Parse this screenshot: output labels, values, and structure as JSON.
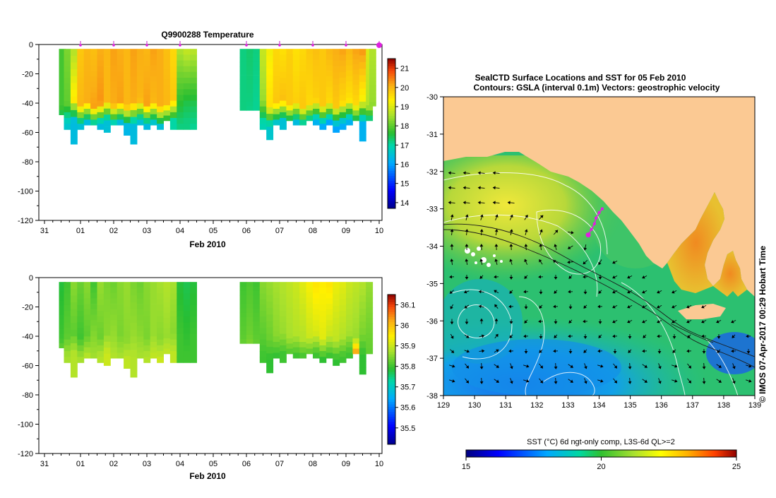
{
  "chart_data": [
    {
      "type": "heatmap",
      "title": "Q9900288  Temperature",
      "xlabel": "Feb 2010",
      "ylabel": "",
      "x_tick_labels": [
        "31",
        "01",
        "02",
        "03",
        "04",
        "05",
        "06",
        "07",
        "08",
        "09",
        "10"
      ],
      "y_tick_labels": [
        "0",
        "-20",
        "-40",
        "-60",
        "-80",
        "-100",
        "-120"
      ],
      "yticks": [
        0,
        -20,
        -40,
        -60,
        -80,
        -100,
        -120
      ],
      "ylim": [
        -120,
        0
      ],
      "xlim": [
        0,
        10
      ],
      "colorbar_ticks": [
        21,
        20,
        19,
        18,
        17,
        16,
        15,
        14
      ],
      "colorbar_range": [
        13.7,
        21.5
      ],
      "profile_markers": [
        1,
        2,
        3,
        4,
        6,
        7,
        8,
        9,
        10
      ],
      "profiles": [
        {
          "day": 0.45,
          "bottom": -48,
          "surface": 17.8,
          "mixed": 17.8,
          "deep": 16.8
        },
        {
          "day": 0.6,
          "bottom": -58,
          "surface": 18.2,
          "mixed": 18.0,
          "deep": 16.6
        },
        {
          "day": 0.8,
          "bottom": -68,
          "surface": 18.6,
          "mixed": 19.4,
          "deep": 16.4
        },
        {
          "day": 1.0,
          "bottom": -58,
          "surface": 19.8,
          "mixed": 20.0,
          "deep": 16.5
        },
        {
          "day": 1.2,
          "bottom": -55,
          "surface": 20.0,
          "mixed": 20.1,
          "deep": 16.4
        },
        {
          "day": 1.4,
          "bottom": -55,
          "surface": 19.9,
          "mixed": 20.2,
          "deep": 16.3
        },
        {
          "day": 1.6,
          "bottom": -58,
          "surface": 20.1,
          "mixed": 20.3,
          "deep": 16.4
        },
        {
          "day": 1.8,
          "bottom": -60,
          "surface": 20.0,
          "mixed": 20.0,
          "deep": 16.5
        },
        {
          "day": 2.0,
          "bottom": -55,
          "surface": 20.2,
          "mixed": 20.1,
          "deep": 16.4
        },
        {
          "day": 2.2,
          "bottom": -55,
          "surface": 20.1,
          "mixed": 20.2,
          "deep": 16.4
        },
        {
          "day": 2.4,
          "bottom": -62,
          "surface": 20.0,
          "mixed": 20.0,
          "deep": 16.3
        },
        {
          "day": 2.6,
          "bottom": -68,
          "surface": 20.2,
          "mixed": 20.1,
          "deep": 16.4
        },
        {
          "day": 2.8,
          "bottom": -55,
          "surface": 20.1,
          "mixed": 20.0,
          "deep": 16.5
        },
        {
          "day": 3.0,
          "bottom": -58,
          "surface": 20.0,
          "mixed": 20.2,
          "deep": 16.4
        },
        {
          "day": 3.2,
          "bottom": -55,
          "surface": 20.2,
          "mixed": 20.0,
          "deep": 16.6
        },
        {
          "day": 3.4,
          "bottom": -58,
          "surface": 20.1,
          "mixed": 20.1,
          "deep": 16.5
        },
        {
          "day": 3.6,
          "bottom": -52,
          "surface": 19.9,
          "mixed": 20.0,
          "deep": 16.8
        },
        {
          "day": 3.8,
          "bottom": -58,
          "surface": 19.6,
          "mixed": 19.8,
          "deep": 17.0
        },
        {
          "day": 4.0,
          "bottom": -58,
          "surface": 18.6,
          "mixed": 17.6,
          "deep": 17.2
        },
        {
          "day": 4.2,
          "bottom": -58,
          "surface": 18.8,
          "mixed": 17.5,
          "deep": 17.2
        },
        {
          "day": 4.4,
          "bottom": -58,
          "surface": 18.7,
          "mixed": 17.4,
          "deep": 17.1
        },
        {
          "day": 5.9,
          "bottom": -45,
          "surface": 17.2,
          "mixed": 17.2,
          "deep": 17.2
        },
        {
          "day": 6.1,
          "bottom": -45,
          "surface": 17.3,
          "mixed": 17.2,
          "deep": 17.1
        },
        {
          "day": 6.3,
          "bottom": -45,
          "surface": 17.2,
          "mixed": 17.1,
          "deep": 17.1
        },
        {
          "day": 6.5,
          "bottom": -58,
          "surface": 18.8,
          "mixed": 18.4,
          "deep": 16.9
        },
        {
          "day": 6.7,
          "bottom": -65,
          "surface": 19.2,
          "mixed": 19.5,
          "deep": 16.6
        },
        {
          "day": 6.9,
          "bottom": -55,
          "surface": 19.6,
          "mixed": 19.8,
          "deep": 16.4
        },
        {
          "day": 7.1,
          "bottom": -58,
          "surface": 19.5,
          "mixed": 19.9,
          "deep": 16.5
        },
        {
          "day": 7.3,
          "bottom": -52,
          "surface": 19.7,
          "mixed": 19.8,
          "deep": 16.3
        },
        {
          "day": 7.5,
          "bottom": -55,
          "surface": 19.5,
          "mixed": 19.7,
          "deep": 16.4
        },
        {
          "day": 7.7,
          "bottom": -55,
          "surface": 19.6,
          "mixed": 19.8,
          "deep": 16.4
        },
        {
          "day": 7.9,
          "bottom": -52,
          "surface": 19.8,
          "mixed": 19.6,
          "deep": 16.3
        },
        {
          "day": 8.1,
          "bottom": -55,
          "surface": 19.9,
          "mixed": 19.7,
          "deep": 16.2
        },
        {
          "day": 8.3,
          "bottom": -58,
          "surface": 19.8,
          "mixed": 19.8,
          "deep": 16.1
        },
        {
          "day": 8.5,
          "bottom": -55,
          "surface": 20.0,
          "mixed": 19.6,
          "deep": 16.0
        },
        {
          "day": 8.7,
          "bottom": -60,
          "surface": 20.1,
          "mixed": 19.8,
          "deep": 16.0
        },
        {
          "day": 8.9,
          "bottom": -58,
          "surface": 20.2,
          "mixed": 19.6,
          "deep": 16.1
        },
        {
          "day": 9.1,
          "bottom": -55,
          "surface": 20.0,
          "mixed": 19.5,
          "deep": 16.2
        },
        {
          "day": 9.3,
          "bottom": -52,
          "surface": 20.2,
          "mixed": 19.6,
          "deep": 16.4
        },
        {
          "day": 9.5,
          "bottom": -66,
          "surface": 20.3,
          "mixed": 19.2,
          "deep": 16.2
        },
        {
          "day": 9.7,
          "bottom": -52,
          "surface": 19.0,
          "mixed": 18.6,
          "deep": 16.3
        },
        {
          "day": 9.8,
          "bottom": -42,
          "surface": 18.6,
          "mixed": 18.4,
          "deep": 17.4
        }
      ]
    },
    {
      "type": "heatmap",
      "title": "",
      "xlabel": "Feb 2010",
      "ylabel": "",
      "x_tick_labels": [
        "31",
        "01",
        "02",
        "03",
        "04",
        "05",
        "06",
        "07",
        "08",
        "09",
        "10"
      ],
      "y_tick_labels": [
        "0",
        "-20",
        "-40",
        "-60",
        "-80",
        "-100",
        "-120"
      ],
      "yticks": [
        0,
        -20,
        -40,
        -60,
        -80,
        -100,
        -120
      ],
      "ylim": [
        -120,
        0
      ],
      "xlim": [
        0,
        10
      ],
      "colorbar_ticks": [
        36.1,
        36,
        35.9,
        35.8,
        35.7,
        35.6,
        35.5
      ],
      "colorbar_ticklabels": [
        "36.1",
        "36",
        "35.9",
        "35.8",
        "35.7",
        "35.6",
        "35.5"
      ],
      "colorbar_range": [
        35.42,
        36.15
      ],
      "profiles": [
        {
          "day": 0.45,
          "bottom": -48,
          "surface": 35.78,
          "mixed": 35.8,
          "deep": 35.86
        },
        {
          "day": 0.6,
          "bottom": -58,
          "surface": 35.8,
          "mixed": 35.82,
          "deep": 35.87
        },
        {
          "day": 0.8,
          "bottom": -68,
          "surface": 35.85,
          "mixed": 35.82,
          "deep": 35.88
        },
        {
          "day": 1.0,
          "bottom": -58,
          "surface": 35.83,
          "mixed": 35.8,
          "deep": 35.87
        },
        {
          "day": 1.2,
          "bottom": -55,
          "surface": 35.85,
          "mixed": 35.82,
          "deep": 35.88
        },
        {
          "day": 1.4,
          "bottom": -55,
          "surface": 35.8,
          "mixed": 35.85,
          "deep": 35.87
        },
        {
          "day": 1.6,
          "bottom": -58,
          "surface": 35.86,
          "mixed": 35.83,
          "deep": 35.88
        },
        {
          "day": 1.8,
          "bottom": -60,
          "surface": 35.84,
          "mixed": 35.85,
          "deep": 35.9
        },
        {
          "day": 2.0,
          "bottom": -55,
          "surface": 35.83,
          "mixed": 35.86,
          "deep": 35.88
        },
        {
          "day": 2.2,
          "bottom": -55,
          "surface": 35.85,
          "mixed": 35.84,
          "deep": 35.87
        },
        {
          "day": 2.4,
          "bottom": -62,
          "surface": 35.86,
          "mixed": 35.85,
          "deep": 35.89
        },
        {
          "day": 2.6,
          "bottom": -68,
          "surface": 35.84,
          "mixed": 35.86,
          "deep": 35.88
        },
        {
          "day": 2.8,
          "bottom": -55,
          "surface": 35.83,
          "mixed": 35.85,
          "deep": 35.87
        },
        {
          "day": 3.0,
          "bottom": -58,
          "surface": 35.85,
          "mixed": 35.84,
          "deep": 35.88
        },
        {
          "day": 3.2,
          "bottom": -55,
          "surface": 35.86,
          "mixed": 35.86,
          "deep": 35.89
        },
        {
          "day": 3.4,
          "bottom": -58,
          "surface": 35.87,
          "mixed": 35.85,
          "deep": 35.9
        },
        {
          "day": 3.6,
          "bottom": -52,
          "surface": 35.88,
          "mixed": 35.86,
          "deep": 35.9
        },
        {
          "day": 3.8,
          "bottom": -58,
          "surface": 35.87,
          "mixed": 35.85,
          "deep": 35.89
        },
        {
          "day": 4.0,
          "bottom": -58,
          "surface": 35.78,
          "mixed": 35.8,
          "deep": 35.8
        },
        {
          "day": 4.2,
          "bottom": -58,
          "surface": 35.77,
          "mixed": 35.79,
          "deep": 35.8
        },
        {
          "day": 4.4,
          "bottom": -58,
          "surface": 35.78,
          "mixed": 35.8,
          "deep": 35.8
        },
        {
          "day": 5.9,
          "bottom": -45,
          "surface": 35.8,
          "mixed": 35.82,
          "deep": 35.84
        },
        {
          "day": 6.1,
          "bottom": -45,
          "surface": 35.81,
          "mixed": 35.83,
          "deep": 35.85
        },
        {
          "day": 6.3,
          "bottom": -45,
          "surface": 35.8,
          "mixed": 35.82,
          "deep": 35.84
        },
        {
          "day": 6.5,
          "bottom": -58,
          "surface": 35.85,
          "mixed": 35.82,
          "deep": 35.8
        },
        {
          "day": 6.7,
          "bottom": -65,
          "surface": 35.86,
          "mixed": 35.83,
          "deep": 35.79
        },
        {
          "day": 6.9,
          "bottom": -55,
          "surface": 35.87,
          "mixed": 35.85,
          "deep": 35.79
        },
        {
          "day": 7.1,
          "bottom": -58,
          "surface": 35.88,
          "mixed": 35.86,
          "deep": 35.8
        },
        {
          "day": 7.3,
          "bottom": -52,
          "surface": 35.89,
          "mixed": 35.87,
          "deep": 35.79
        },
        {
          "day": 7.5,
          "bottom": -55,
          "surface": 35.9,
          "mixed": 35.88,
          "deep": 35.8
        },
        {
          "day": 7.7,
          "bottom": -55,
          "surface": 35.92,
          "mixed": 35.88,
          "deep": 35.79
        },
        {
          "day": 7.9,
          "bottom": -52,
          "surface": 35.94,
          "mixed": 35.9,
          "deep": 35.8
        },
        {
          "day": 8.1,
          "bottom": -55,
          "surface": 35.96,
          "mixed": 35.91,
          "deep": 35.8
        },
        {
          "day": 8.3,
          "bottom": -58,
          "surface": 35.95,
          "mixed": 35.92,
          "deep": 35.79
        },
        {
          "day": 8.5,
          "bottom": -55,
          "surface": 35.96,
          "mixed": 35.9,
          "deep": 35.8
        },
        {
          "day": 8.7,
          "bottom": -60,
          "surface": 35.93,
          "mixed": 35.89,
          "deep": 35.79
        },
        {
          "day": 8.9,
          "bottom": -58,
          "surface": 35.92,
          "mixed": 35.88,
          "deep": 35.8
        },
        {
          "day": 9.1,
          "bottom": -55,
          "surface": 35.9,
          "mixed": 35.87,
          "deep": 35.8
        },
        {
          "day": 9.3,
          "bottom": -52,
          "surface": 35.89,
          "mixed": 35.86,
          "deep": 36.1
        },
        {
          "day": 9.5,
          "bottom": -66,
          "surface": 35.88,
          "mixed": 35.84,
          "deep": 35.79
        },
        {
          "day": 9.7,
          "bottom": -52,
          "surface": 35.86,
          "mixed": 35.83,
          "deep": 35.82
        }
      ]
    },
    {
      "type": "heatmap",
      "title": "SealCTD Surface Locations and SST for 05 Feb 2010",
      "subtitle": "Contours: GSLA (interval 0.1m) Vectors: geostrophic velocity",
      "xlabel": "",
      "ylabel": "",
      "x_tick_labels": [
        "129",
        "130",
        "131",
        "132",
        "133",
        "134",
        "135",
        "136",
        "137",
        "138",
        "139"
      ],
      "y_tick_labels": [
        "-30",
        "-31",
        "-32",
        "-33",
        "-34",
        "-35",
        "-36",
        "-37",
        "-38"
      ],
      "xlim": [
        129,
        139
      ],
      "ylim": [
        -38,
        -30
      ],
      "side_label": "© IMOS 07-Apr-2017 00:29 Hobart Time",
      "colorbar_title": "SST (°C) 6d ngt-only comp, L3S-6d QL>=2",
      "colorbar_ticks": [
        15,
        20,
        25
      ],
      "colorbar_range": [
        15,
        25
      ],
      "seal_track": [
        [
          133.65,
          -33.7
        ],
        [
          133.75,
          -33.55
        ],
        [
          133.85,
          -33.4
        ],
        [
          133.9,
          -33.25
        ],
        [
          134.0,
          -33.1
        ],
        [
          134.1,
          -33.0
        ]
      ],
      "land_color": "#fbc993"
    }
  ]
}
